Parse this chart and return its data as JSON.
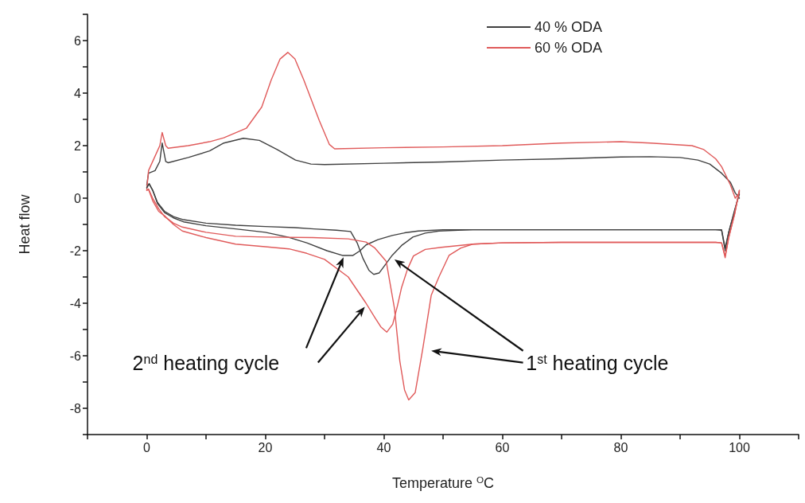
{
  "chart_data": {
    "type": "line",
    "xlabel": "Temperature $^{O}$C",
    "ylabel": "Heat flow",
    "xlim": [
      -10,
      110
    ],
    "xticks": [
      {
        "value": -10,
        "label": null
      },
      0,
      {
        "value": 10,
        "label": null
      },
      20,
      {
        "value": 30,
        "label": null
      },
      40,
      {
        "value": 50,
        "label": null
      },
      60,
      {
        "value": 70,
        "label": null
      },
      80,
      {
        "value": 90,
        "label": null
      },
      100,
      {
        "value": 110,
        "label": null
      }
    ],
    "ylim": [
      -9,
      7
    ],
    "yticks": [
      {
        "value": -9,
        "label": null
      },
      -8,
      {
        "value": -7,
        "label": null
      },
      -6,
      {
        "value": -5,
        "label": null
      },
      -4,
      {
        "value": -3,
        "label": null
      },
      -2,
      {
        "value": -1,
        "label": null
      },
      0,
      {
        "value": 1,
        "label": null
      },
      2,
      {
        "value": 3,
        "label": null
      },
      4,
      {
        "value": 5,
        "label": null
      },
      6,
      {
        "value": 7,
        "label": null
      }
    ],
    "grid": false,
    "legend": "top right",
    "marker": "none",
    "line_style": "solid",
    "annotations": [
      "2$^{nd}$ heating cycle",
      "1$^{st}$ heating cycle"
    ],
    "series": [
      {
        "name": "40 % ODA",
        "color": "#404040",
        "x": [
          100,
          99.3,
          98.5,
          97,
          95,
          93,
          90,
          85,
          80,
          70,
          60,
          50,
          40,
          30,
          27.7,
          25.1,
          22,
          19,
          16.3,
          13,
          10.6,
          7,
          3.6,
          3.2,
          2.6,
          2.2,
          1.4,
          0.3,
          0
        ],
        "values": [
          0.0,
          0.2,
          0.6,
          0.95,
          1.3,
          1.45,
          1.55,
          1.58,
          1.57,
          1.5,
          1.45,
          1.38,
          1.33,
          1.28,
          1.3,
          1.45,
          1.85,
          2.2,
          2.28,
          2.1,
          1.8,
          1.55,
          1.35,
          1.4,
          2.1,
          1.4,
          1.05,
          0.95,
          0.5
        ]
      },
      {
        "name": "60 % ODA",
        "color": "#e05a5a",
        "x": [
          100,
          99.3,
          98.5,
          97,
          96,
          94,
          92,
          85,
          80,
          70,
          60,
          50,
          40,
          31.7,
          30.8,
          29.1,
          26.5,
          25,
          23.8,
          22.5,
          21,
          19.4,
          16.8,
          13,
          10.6,
          7,
          3.6,
          3.2,
          2.6,
          2.2,
          1.8,
          0.3,
          0
        ],
        "values": [
          0.2,
          0.0,
          0.5,
          1.2,
          1.5,
          1.85,
          2.0,
          2.1,
          2.15,
          2.1,
          2.0,
          1.95,
          1.92,
          1.88,
          2.05,
          2.96,
          4.5,
          5.3,
          5.55,
          5.3,
          4.5,
          3.47,
          2.66,
          2.3,
          2.15,
          2.0,
          1.9,
          2.0,
          2.5,
          2.0,
          1.8,
          1.05,
          0.35
        ]
      },
      {
        "color": "#404040",
        "x": [
          0,
          0.4,
          1,
          1.8,
          3,
          4.5,
          6.2,
          10,
          15,
          20,
          25,
          28.2,
          32,
          34.4,
          35.5,
          36.5,
          37.5,
          38.3,
          39.2,
          40.2,
          41.4,
          43,
          44.9,
          47,
          49.3,
          55,
          70,
          85,
          96,
          97,
          97.6,
          98.2,
          99.2,
          100
        ],
        "values": [
          0.4,
          0.55,
          0.3,
          -0.16,
          -0.5,
          -0.7,
          -0.82,
          -0.95,
          -1.03,
          -1.08,
          -1.12,
          -1.17,
          -1.22,
          -1.27,
          -1.7,
          -2.3,
          -2.75,
          -2.9,
          -2.85,
          -2.55,
          -2.18,
          -1.8,
          -1.48,
          -1.33,
          -1.25,
          -1.2,
          -1.2,
          -1.2,
          -1.2,
          -1.2,
          -2.0,
          -1.3,
          -0.45,
          0.15
        ]
      },
      {
        "color": "#404040",
        "x": [
          0,
          0.4,
          1,
          1.8,
          3,
          4.5,
          6.2,
          10,
          15,
          20,
          23.8,
          27,
          30.4,
          33,
          34.8,
          36,
          37,
          39,
          41.4,
          43.5,
          45.8,
          50,
          60,
          70,
          85,
          96,
          97,
          97.6,
          98.2,
          99.2,
          100
        ],
        "values": [
          0.4,
          0.55,
          0.3,
          -0.2,
          -0.55,
          -0.75,
          -0.9,
          -1.05,
          -1.17,
          -1.3,
          -1.48,
          -1.7,
          -2.0,
          -2.18,
          -2.18,
          -2.0,
          -1.78,
          -1.58,
          -1.42,
          -1.32,
          -1.25,
          -1.2,
          -1.2,
          -1.2,
          -1.2,
          -1.2,
          -1.22,
          -1.9,
          -1.3,
          -0.5,
          0.25
        ]
      },
      {
        "color": "#e05a5a",
        "x": [
          0,
          0.3,
          1,
          2,
          3,
          4.5,
          6,
          10,
          15,
          20,
          28,
          34,
          37,
          38.5,
          40.4,
          41.8,
          42.7,
          43.5,
          44.2,
          45.3,
          46.6,
          48,
          49.3,
          51,
          53,
          55,
          60,
          70,
          85,
          96,
          97,
          97.6,
          98.2,
          99.2,
          100
        ],
        "values": [
          0.3,
          0.35,
          0.0,
          -0.4,
          -0.7,
          -0.95,
          -1.1,
          -1.3,
          -1.45,
          -1.48,
          -1.5,
          -1.55,
          -1.67,
          -1.9,
          -2.4,
          -4.2,
          -6.2,
          -7.3,
          -7.68,
          -7.4,
          -5.7,
          -3.7,
          -3.0,
          -2.18,
          -1.9,
          -1.75,
          -1.7,
          -1.68,
          -1.68,
          -1.68,
          -1.7,
          -2.27,
          -1.5,
          -0.6,
          0.3
        ]
      },
      {
        "color": "#e05a5a",
        "x": [
          0,
          0.3,
          1,
          2,
          3,
          4.5,
          6,
          10,
          15,
          20,
          24,
          27,
          30,
          34,
          35.5,
          37,
          38.5,
          39.5,
          40.5,
          41.5,
          42.3,
          43,
          44,
          45,
          47,
          49.7,
          55,
          60,
          70,
          85,
          96,
          97,
          97.6,
          98.2,
          99.2,
          100
        ],
        "values": [
          0.3,
          0.33,
          -0.1,
          -0.5,
          -0.67,
          -1.0,
          -1.25,
          -1.5,
          -1.75,
          -1.85,
          -1.93,
          -2.1,
          -2.33,
          -3.0,
          -3.5,
          -4.0,
          -4.55,
          -4.9,
          -5.1,
          -4.8,
          -4.1,
          -3.4,
          -2.7,
          -2.2,
          -1.95,
          -1.87,
          -1.75,
          -1.7,
          -1.68,
          -1.68,
          -1.68,
          -1.7,
          -2.2,
          -1.5,
          -0.6,
          0.3
        ]
      }
    ]
  }
}
